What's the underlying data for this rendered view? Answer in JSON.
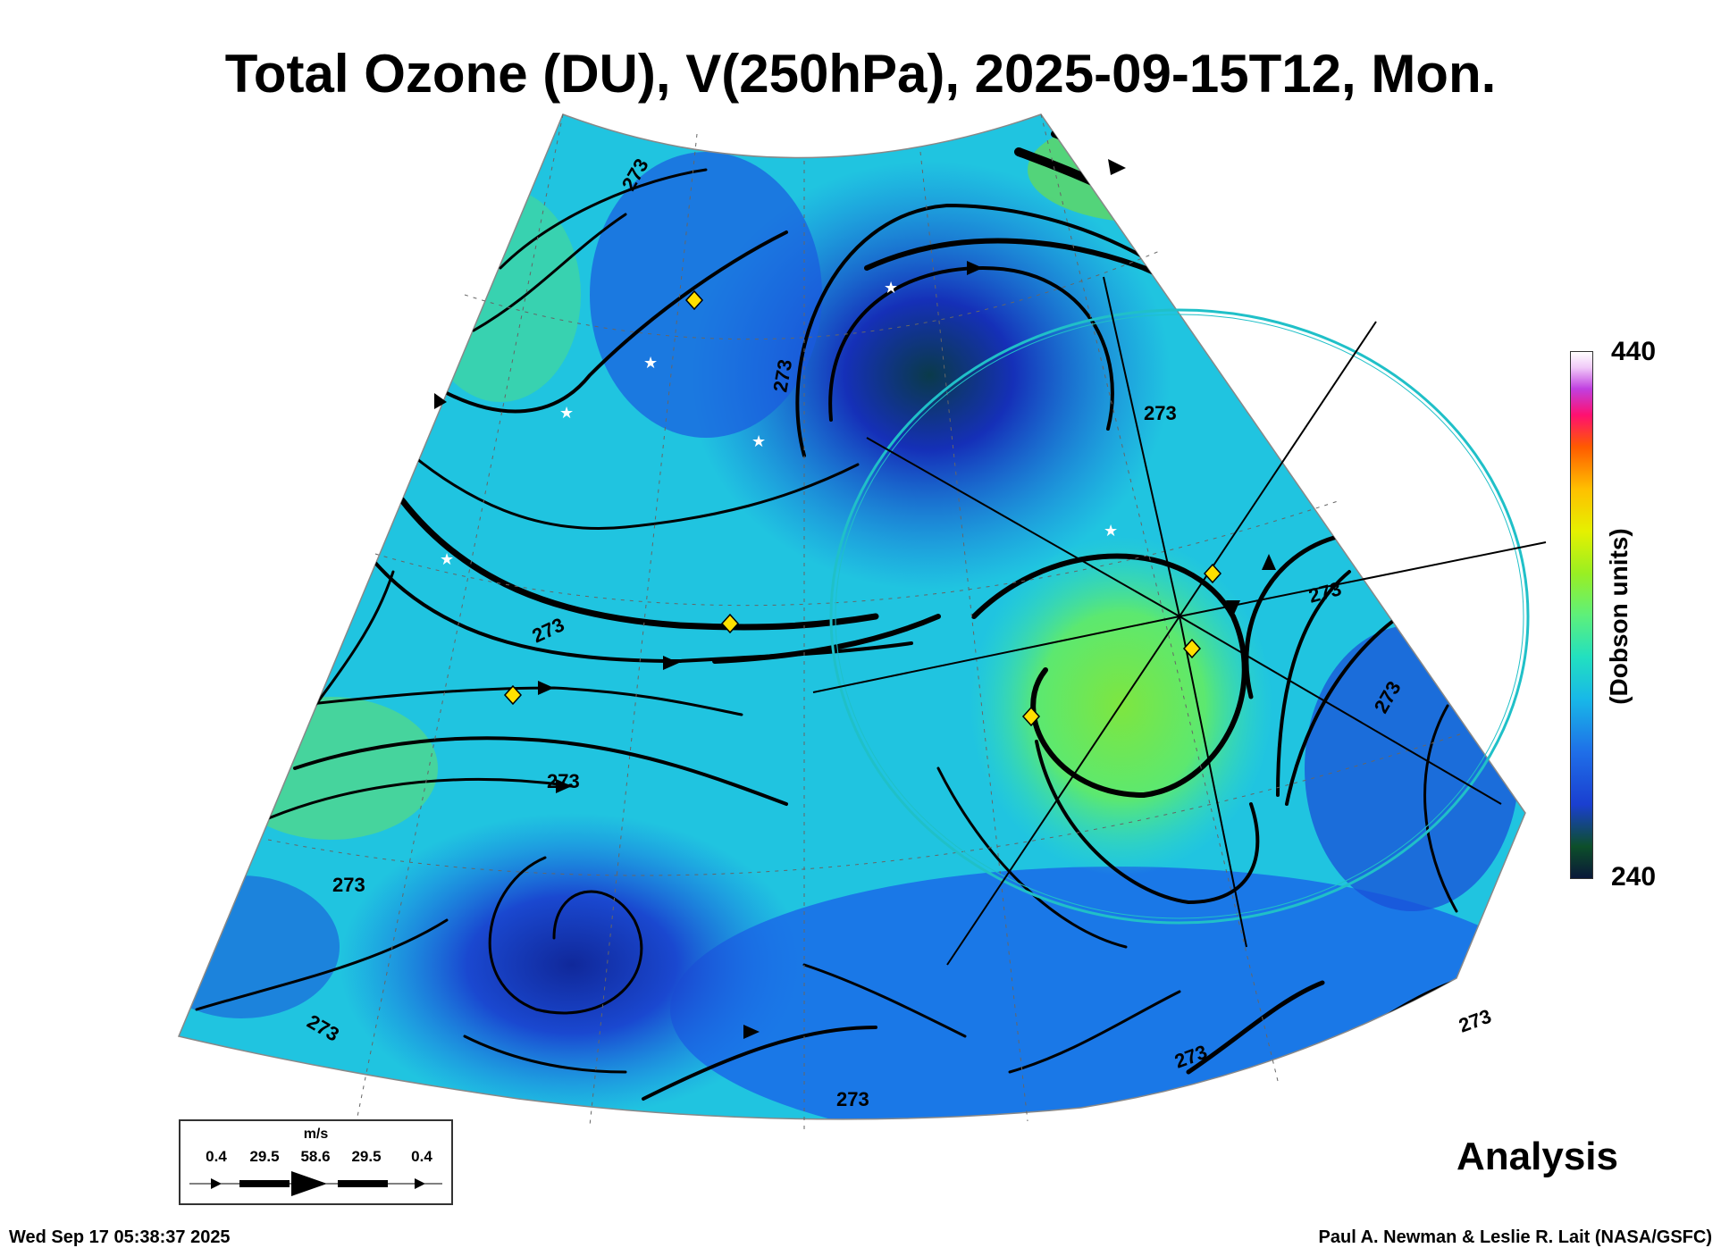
{
  "title": "Total Ozone (DU), V(250hPa), 2025-09-15T12, Mon.",
  "colorbar": {
    "max_label": "440",
    "min_label": "240",
    "label": "(Dobson units)"
  },
  "contour_label": "273",
  "analysis_label": "Analysis",
  "timestamp": "Wed Sep 17 05:38:37 2025",
  "credit": "Paul A. Newman & Leslie R. Lait (NASA/GSFC)",
  "wind_key": {
    "unit": "m/s",
    "values": [
      "0.4",
      "29.5",
      "58.6",
      "29.5",
      "0.4"
    ]
  },
  "colors": {
    "low_ozone": "#0d3b8a",
    "mid_ozone": "#1ec8e0",
    "high_ozone": "#7ee640",
    "streamline": "#000000",
    "station_marker": "#ffe000",
    "highlight_circle": "#20c0c8"
  }
}
